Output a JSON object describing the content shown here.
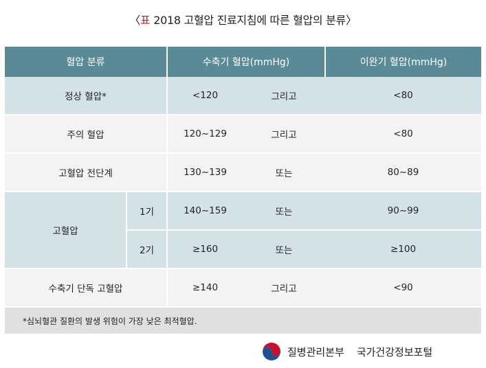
{
  "title": {
    "open_bracket": "〈",
    "mark": "표",
    "text": " 2018 고혈압 진료지침에 따른 혈압의 분류",
    "close_bracket": "〉"
  },
  "table": {
    "headers": [
      "혈압 분류",
      "수축기 혈압(mmHg)",
      "이완기 혈압(mmHg)"
    ],
    "rows": [
      {
        "category": "정상 혈압*",
        "systolic": "<120",
        "connector": "그리고",
        "diastolic": "<80"
      },
      {
        "category": "주의 혈압",
        "systolic": "120~129",
        "connector": "그리고",
        "diastolic": "<80"
      },
      {
        "category": "고혈압 전단계",
        "systolic": "130~139",
        "connector": "또는",
        "diastolic": "80~89"
      },
      {
        "category": "고혈압",
        "stage": "1기",
        "systolic": "140~159",
        "connector": "또는",
        "diastolic": "90~99"
      },
      {
        "stage": "2기",
        "systolic": "≥160",
        "connector": "또는",
        "diastolic": "≥100"
      },
      {
        "category": "수축기 단독 고혈압",
        "systolic": "≥140",
        "connector": "그리고",
        "diastolic": "<90"
      }
    ],
    "footnote": "*심뇌혈관 질환의 발생 위험이 가장 낮은 최적혈압."
  },
  "footer": {
    "organization": "질병관리본부",
    "portal": "국가건강정보포털",
    "logo_icon": "kcdc-taegeuk-logo-icon",
    "logo_colors": {
      "red": "#c8102e",
      "blue": "#1d4f91"
    }
  }
}
